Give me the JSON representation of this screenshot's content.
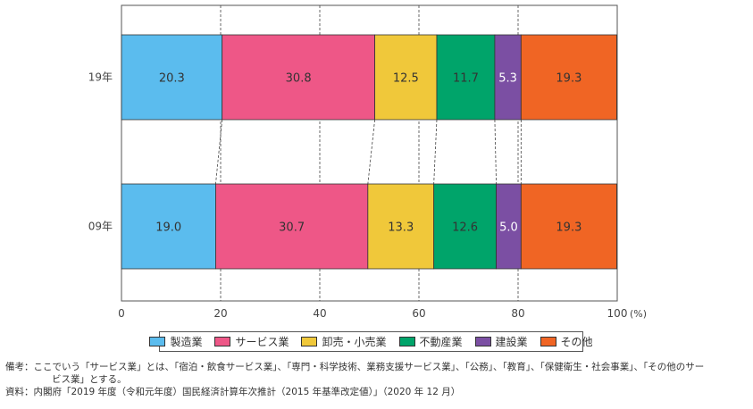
{
  "chart_data": {
    "type": "bar",
    "orientation": "horizontal",
    "stacked": true,
    "categories": [
      "19年",
      "09年"
    ],
    "series": [
      {
        "name": "製造業",
        "values": [
          20.3,
          19.0
        ],
        "color": "#5bbcee"
      },
      {
        "name": "サービス業",
        "values": [
          30.8,
          30.7
        ],
        "color": "#ee5787"
      },
      {
        "name": "卸売・小売業",
        "values": [
          12.5,
          13.3
        ],
        "color": "#f0c83a"
      },
      {
        "name": "不動産業",
        "values": [
          11.7,
          12.6
        ],
        "color": "#00a46a"
      },
      {
        "name": "建設業",
        "values": [
          5.3,
          5.0
        ],
        "color": "#7b4fa3"
      },
      {
        "name": "その他",
        "values": [
          19.3,
          19.3
        ],
        "color": "#f06524"
      }
    ],
    "xlim": [
      0,
      100
    ],
    "xticks": [
      "0",
      "20",
      "40",
      "60",
      "80",
      "100"
    ],
    "xunit": "(%)",
    "grid": true,
    "legend_position": "bottom"
  },
  "notes": {
    "line1": "備考：ここでいう「サービス業」とは、「宿泊・飲食サービス業」、「専門・科学技術、業務支援サービス業」、「公務」、「教育」、「保健衛生・社会事業」、「その他のサー",
    "line2": "ビス業」とする。",
    "line3": "資料：内閣府「2019 年度（令和元年度）国民経済計算年次推計（2015 年基準改定値）」（2020 年 12 月）"
  }
}
